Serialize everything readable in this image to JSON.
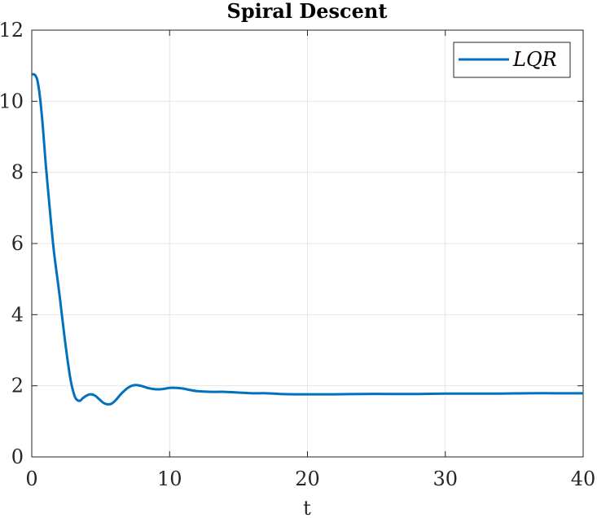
{
  "chart_data": {
    "type": "line",
    "title": "Spiral Descent",
    "xlabel": "t",
    "ylabel": "",
    "xlim": [
      0,
      40
    ],
    "ylim": [
      0,
      12
    ],
    "xticks": [
      0,
      10,
      20,
      30,
      40
    ],
    "yticks": [
      0,
      2,
      4,
      6,
      8,
      10,
      12
    ],
    "xtick_labels": [
      "0",
      "10",
      "20",
      "30",
      "40"
    ],
    "ytick_labels": [
      "0",
      "2",
      "4",
      "6",
      "8",
      "10",
      "12"
    ],
    "grid": true,
    "legend_position": "top-right",
    "series": [
      {
        "name": "LQR",
        "color": "#0072BD",
        "x": [
          0,
          0.2,
          0.4,
          0.6,
          0.8,
          1.0,
          1.3,
          1.6,
          2.0,
          2.4,
          2.8,
          3.1,
          3.3,
          3.5,
          3.7,
          4.0,
          4.3,
          4.6,
          4.9,
          5.2,
          5.5,
          5.8,
          6.1,
          6.5,
          7.0,
          7.5,
          8.0,
          8.5,
          9.0,
          9.5,
          10.0,
          10.5,
          11.0,
          11.5,
          12.0,
          13.0,
          14.0,
          15.0,
          16.0,
          17.0,
          18.0,
          19.0,
          20.0,
          22.0,
          24.0,
          26.0,
          28.0,
          30.0,
          32.0,
          34.0,
          36.0,
          38.0,
          40.0
        ],
        "y": [
          10.75,
          10.75,
          10.6,
          10.1,
          9.3,
          8.3,
          7.0,
          5.8,
          4.6,
          3.3,
          2.2,
          1.72,
          1.6,
          1.58,
          1.65,
          1.73,
          1.76,
          1.72,
          1.62,
          1.52,
          1.48,
          1.5,
          1.6,
          1.78,
          1.95,
          2.02,
          1.99,
          1.93,
          1.9,
          1.91,
          1.94,
          1.94,
          1.92,
          1.88,
          1.85,
          1.83,
          1.83,
          1.81,
          1.79,
          1.79,
          1.77,
          1.76,
          1.76,
          1.76,
          1.77,
          1.77,
          1.77,
          1.78,
          1.78,
          1.78,
          1.79,
          1.79,
          1.79
        ]
      }
    ]
  }
}
